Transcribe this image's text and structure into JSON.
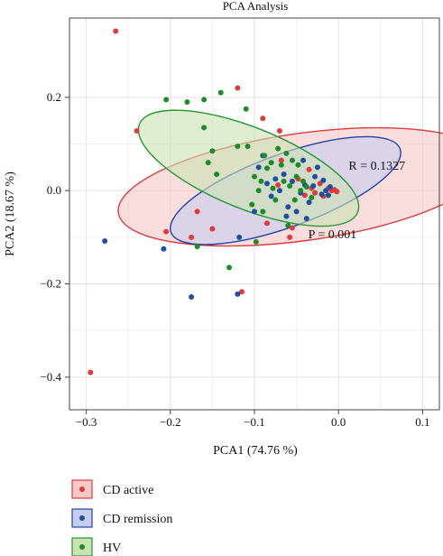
{
  "chart_data": {
    "type": "scatter",
    "title": "PCA Analysis",
    "xlabel": "PCA1 (74.76 %)",
    "ylabel": "PCA2 (18.67 %)",
    "xlim": [
      -0.32,
      0.12
    ],
    "ylim": [
      -0.47,
      0.37
    ],
    "xticks": [
      -0.3,
      -0.2,
      -0.1,
      0.0,
      0.1
    ],
    "xtick_labels": [
      "−0.3",
      "−0.2",
      "−0.1",
      "0.0",
      "0.1"
    ],
    "yticks": [
      -0.4,
      -0.2,
      0.0,
      0.2
    ],
    "ytick_labels": [
      "−0.4",
      "−0.2",
      "0.0",
      "0.2"
    ],
    "grid": true,
    "legend_placement": "bottom-left",
    "annotations": [
      {
        "text": "R = 0.1327",
        "x": 0.012,
        "y": 0.045
      },
      {
        "text": "P = 0.001",
        "x": -0.036,
        "y": -0.102
      }
    ],
    "series": [
      {
        "name": "CD active",
        "color": "#e03b3b",
        "fill": "#f7c8c8",
        "stroke": "#dc3c3c",
        "ellipse": {
          "cx": -0.042,
          "cy": 0.008,
          "rx": 0.222,
          "ry": 0.115,
          "angle_deg": 8
        },
        "points": [
          [
            -0.265,
            0.342
          ],
          [
            -0.24,
            0.128
          ],
          [
            -0.295,
            -0.39
          ],
          [
            -0.205,
            -0.088
          ],
          [
            -0.175,
            -0.1
          ],
          [
            -0.168,
            -0.045
          ],
          [
            -0.15,
            -0.082
          ],
          [
            -0.12,
            0.22
          ],
          [
            -0.115,
            -0.217
          ],
          [
            -0.09,
            0.155
          ],
          [
            -0.07,
            0.128
          ],
          [
            -0.068,
            0.065
          ],
          [
            -0.048,
            0.025
          ],
          [
            -0.04,
            -0.01
          ],
          [
            -0.035,
            0.045
          ],
          [
            -0.032,
            0.005
          ],
          [
            -0.028,
            -0.005
          ],
          [
            -0.022,
            0.015
          ],
          [
            -0.018,
            -0.012
          ],
          [
            -0.012,
            0.005
          ],
          [
            -0.008,
            0.0
          ],
          [
            -0.005,
            0.002
          ],
          [
            -0.002,
            -0.002
          ],
          [
            -0.058,
            -0.1
          ],
          [
            -0.072,
            0.012
          ],
          [
            -0.055,
            -0.08
          ],
          [
            -0.085,
            -0.07
          ]
        ]
      },
      {
        "name": "CD remission",
        "color": "#1f4fa0",
        "fill": "#c6cdee",
        "stroke": "#2244aa",
        "ellipse": {
          "cx": -0.063,
          "cy": 0.0,
          "rx": 0.145,
          "ry": 0.078,
          "angle_deg": 20
        },
        "points": [
          [
            -0.278,
            -0.108
          ],
          [
            -0.208,
            -0.125
          ],
          [
            -0.175,
            -0.228
          ],
          [
            -0.12,
            -0.222
          ],
          [
            -0.118,
            -0.1
          ],
          [
            -0.095,
            0.05
          ],
          [
            -0.09,
            0.075
          ],
          [
            -0.085,
            0.015
          ],
          [
            -0.08,
            -0.012
          ],
          [
            -0.075,
            0.025
          ],
          [
            -0.07,
            0.0
          ],
          [
            -0.065,
            0.035
          ],
          [
            -0.06,
            -0.035
          ],
          [
            -0.055,
            0.02
          ],
          [
            -0.05,
            -0.045
          ],
          [
            -0.045,
            -0.005
          ],
          [
            -0.04,
            0.012
          ],
          [
            -0.035,
            -0.025
          ],
          [
            -0.03,
            0.01
          ],
          [
            -0.028,
            0.03
          ],
          [
            -0.025,
            0.05
          ],
          [
            -0.02,
            -0.008
          ],
          [
            -0.018,
            0.022
          ],
          [
            -0.015,
            0.0
          ],
          [
            -0.012,
            -0.01
          ],
          [
            -0.01,
            0.008
          ],
          [
            -0.038,
            -0.06
          ],
          [
            -0.042,
            0.065
          ],
          [
            -0.062,
            -0.055
          ],
          [
            -0.1,
            -0.045
          ]
        ]
      },
      {
        "name": "HV",
        "color": "#1e8a2a",
        "fill": "#c9e3b3",
        "stroke": "#229933",
        "ellipse": {
          "cx": -0.107,
          "cy": 0.048,
          "rx": 0.14,
          "ry": 0.087,
          "angle_deg": -22
        },
        "points": [
          [
            -0.205,
            0.195
          ],
          [
            -0.18,
            0.19
          ],
          [
            -0.16,
            0.195
          ],
          [
            -0.16,
            0.135
          ],
          [
            -0.168,
            -0.12
          ],
          [
            -0.15,
            0.085
          ],
          [
            -0.145,
            0.035
          ],
          [
            -0.13,
            -0.165
          ],
          [
            -0.11,
            0.175
          ],
          [
            -0.108,
            0.095
          ],
          [
            -0.103,
            -0.03
          ],
          [
            -0.1,
            0.03
          ],
          [
            -0.098,
            -0.11
          ],
          [
            -0.095,
            0.0
          ],
          [
            -0.092,
            0.02
          ],
          [
            -0.088,
            0.075
          ],
          [
            -0.085,
            0.048
          ],
          [
            -0.08,
            0.06
          ],
          [
            -0.078,
            0.005
          ],
          [
            -0.075,
            -0.02
          ],
          [
            -0.072,
            0.09
          ],
          [
            -0.068,
            0.055
          ],
          [
            -0.065,
            0.02
          ],
          [
            -0.062,
            0.08
          ],
          [
            -0.06,
            -0.075
          ],
          [
            -0.058,
            0.01
          ],
          [
            -0.055,
            0.065
          ],
          [
            -0.052,
            -0.02
          ],
          [
            -0.05,
            0.03
          ],
          [
            -0.048,
            0.055
          ],
          [
            -0.045,
            0.0
          ],
          [
            -0.042,
            0.02
          ],
          [
            -0.038,
            0.008
          ],
          [
            -0.032,
            -0.015
          ],
          [
            -0.09,
            -0.045
          ],
          [
            -0.12,
            0.095
          ],
          [
            -0.14,
            0.21
          ],
          [
            -0.155,
            0.06
          ]
        ]
      }
    ]
  }
}
